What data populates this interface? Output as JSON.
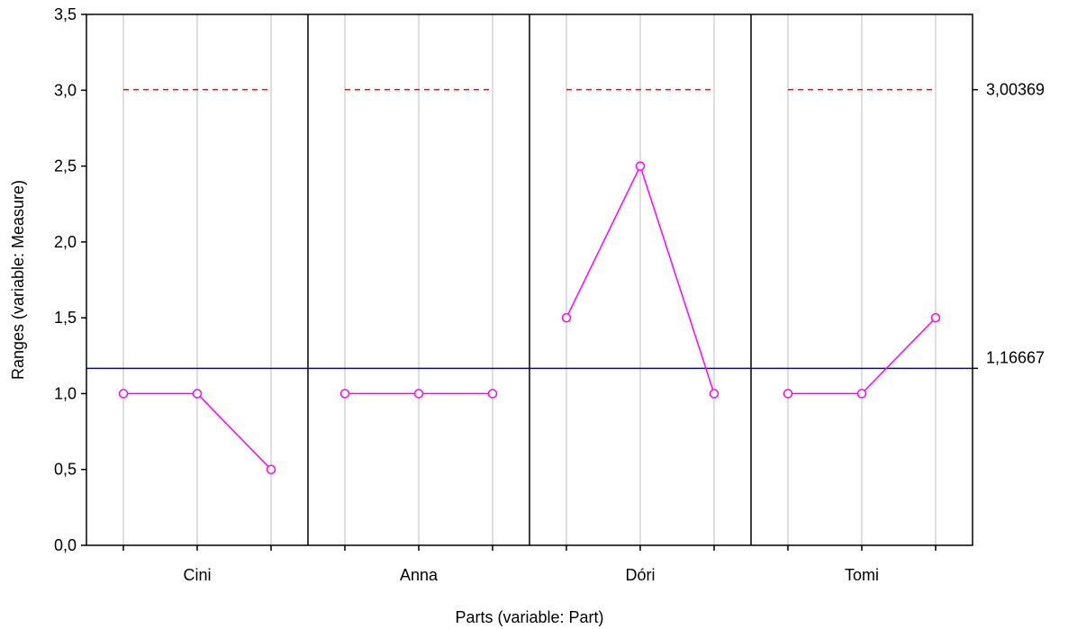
{
  "chart_data": {
    "type": "line",
    "xlabel": "Parts (variable: Part)",
    "ylabel": "Ranges (variable: Measure)",
    "ylim": [
      0,
      3.5
    ],
    "yticks": [
      "0,0",
      "0,5",
      "1,0",
      "1,5",
      "2,0",
      "2,5",
      "3,0",
      "3,5"
    ],
    "grid": "vertical",
    "categories": [
      "Cini",
      "Anna",
      "Dóri",
      "Tomi"
    ],
    "points_per_category": 3,
    "series": [
      {
        "values": [
          [
            1.0,
            1.0,
            0.5
          ],
          [
            1.0,
            1.0,
            1.0
          ],
          [
            1.5,
            2.5,
            1.0
          ],
          [
            1.0,
            1.0,
            1.5
          ]
        ]
      }
    ],
    "center_line": {
      "value": 1.16667,
      "label": "1,16667",
      "color": "#0000cc"
    },
    "upper_control_limit": {
      "value": 3.00369,
      "label": "3,00369",
      "color": "#ff0000",
      "style": "dashed"
    },
    "series_color": "#ff00ff"
  }
}
